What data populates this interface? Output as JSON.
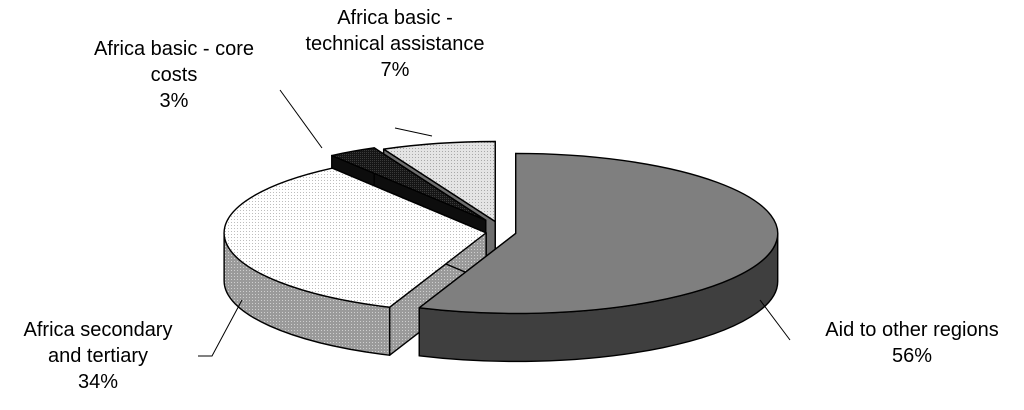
{
  "chart_data": {
    "type": "pie",
    "title": "",
    "three_d": true,
    "exploded": true,
    "slices": [
      {
        "key": "other",
        "label_lines": [
          "Aid to other regions"
        ],
        "percent_label": "56%",
        "value": 56,
        "color": "#7f7f7f"
      },
      {
        "key": "sec",
        "label_lines": [
          "Africa secondary",
          "and tertiary"
        ],
        "percent_label": "34%",
        "value": 34,
        "color": "#ffffff"
      },
      {
        "key": "core",
        "label_lines": [
          "Africa basic - core",
          "costs"
        ],
        "percent_label": "3%",
        "value": 3,
        "color": "#1a1a1a"
      },
      {
        "key": "tech",
        "label_lines": [
          "Africa basic -",
          "technical assistance"
        ],
        "percent_label": "7%",
        "value": 7,
        "color": "#e6e6e6"
      }
    ]
  }
}
